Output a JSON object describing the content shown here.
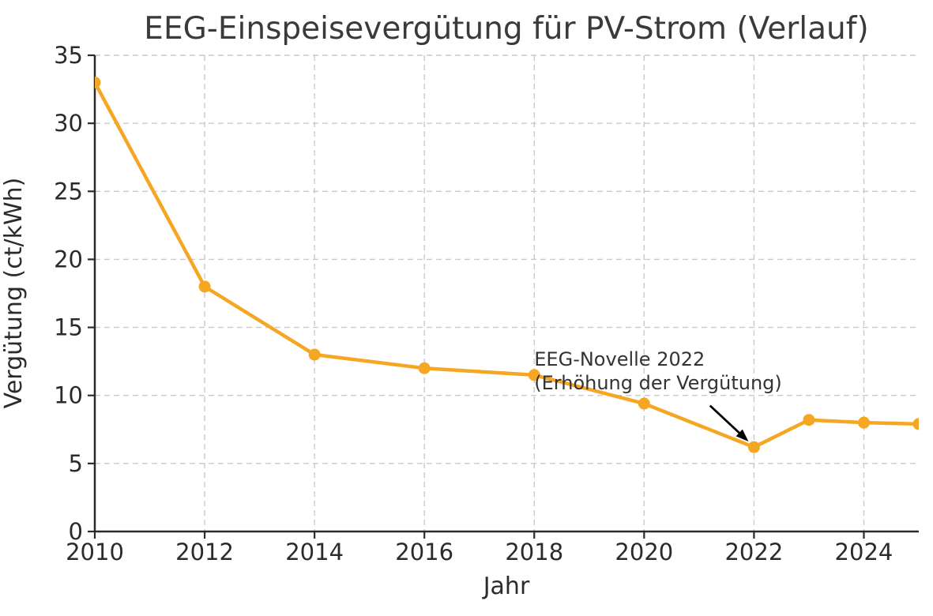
{
  "figure": {
    "background": "#ffffff"
  },
  "chart_data": {
    "type": "line",
    "title": "EEG-Einspeisevergütung für PV-Strom (Verlauf)",
    "xlabel": "Jahr",
    "ylabel": "Vergütung (ct/kWh)",
    "x": [
      2010,
      2012,
      2014,
      2016,
      2018,
      2020,
      2022,
      2023,
      2024,
      2025
    ],
    "values": [
      33,
      18,
      13,
      12,
      11.5,
      9.4,
      6.2,
      8.2,
      8.0,
      7.9
    ],
    "xlim": [
      2010,
      2025
    ],
    "ylim": [
      0,
      35
    ],
    "xticks": [
      2010,
      2012,
      2014,
      2016,
      2018,
      2020,
      2022,
      2024
    ],
    "yticks": [
      0,
      5,
      10,
      15,
      20,
      25,
      30,
      35
    ],
    "grid": true,
    "grid_style": "dashed",
    "legend": "none",
    "line_color": "#F5A623",
    "marker": "circle",
    "annotation": {
      "line1": "EEG-Novelle 2022",
      "line2": "(Erhöhung der Vergütung)",
      "text_x": 2018.0,
      "text_y": 12.2,
      "line_height_units": 1.75,
      "arrow": {
        "x1": 2021.2,
        "y1": 9.25,
        "x2": 2021.9,
        "y2": 6.62
      },
      "arrow_color": "#000000",
      "text_color": "#333333"
    },
    "colors": {
      "axis": "#2b2b2b",
      "grid": "#c9c9c9",
      "title": "#3a3a3a",
      "tick_label": "#2b2b2b"
    }
  }
}
